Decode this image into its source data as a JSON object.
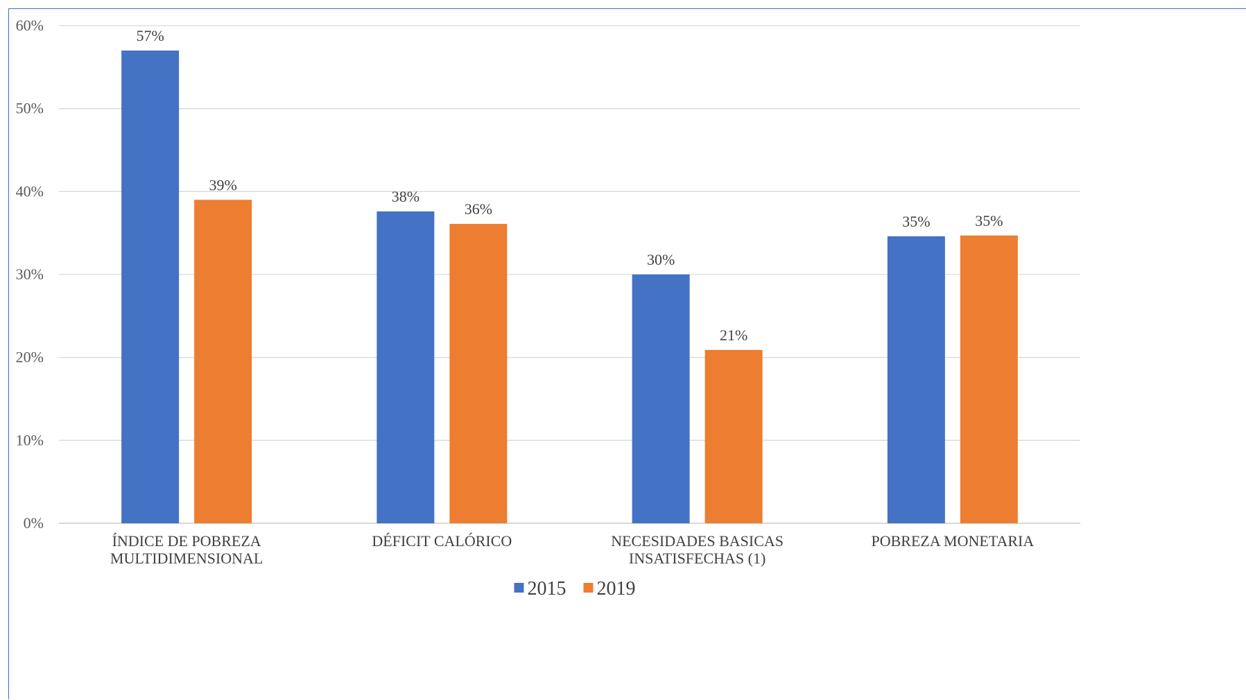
{
  "chart_data": {
    "type": "bar",
    "title": "",
    "xlabel": "",
    "ylabel": "",
    "ylim": [
      0,
      0.6
    ],
    "y_ticks": [
      "0%",
      "10%",
      "20%",
      "30%",
      "40%",
      "50%",
      "60%"
    ],
    "y_tick_values": [
      0,
      0.1,
      0.2,
      0.3,
      0.4,
      0.5,
      0.6
    ],
    "grid": true,
    "legend_position": "bottom",
    "categories": [
      [
        "ÍNDICE DE POBREZA",
        "MULTIDIMENSIONAL"
      ],
      [
        "DÉFICIT CALÓRICO"
      ],
      [
        "NECESIDADES BASICAS",
        "INSATISFECHAS (1)"
      ],
      [
        "POBREZA MONETARIA"
      ]
    ],
    "series": [
      {
        "name": "2015",
        "color": "#4472c4",
        "values": [
          0.57,
          0.376,
          0.3,
          0.346
        ],
        "labels": [
          "57%",
          "38%",
          "30%",
          "35%"
        ]
      },
      {
        "name": "2019",
        "color": "#ed7d31",
        "values": [
          0.39,
          0.361,
          0.209,
          0.347
        ],
        "labels": [
          "39%",
          "36%",
          "21%",
          "35%"
        ]
      }
    ]
  }
}
